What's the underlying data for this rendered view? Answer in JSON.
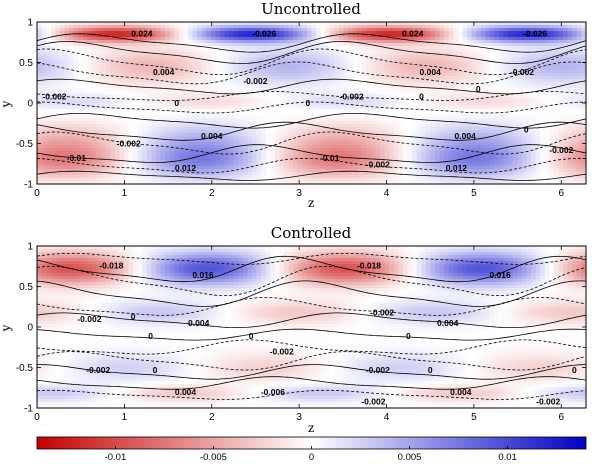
{
  "chart_data": {
    "type": "heatmap",
    "colorbar": {
      "colormap": "red-white-blue",
      "colors": {
        "negative": "#c80000",
        "zero": "#ffffff",
        "positive": "#0000c8"
      },
      "range": [
        -0.014,
        0.014
      ],
      "ticks": [
        -0.01,
        -0.005,
        0,
        0.005,
        0.01
      ],
      "tick_labels": [
        "-0.01",
        "-0.005",
        "0",
        "0.005",
        "0.01"
      ]
    },
    "panels": [
      {
        "title": "Uncontrolled",
        "xlabel": "z",
        "ylabel": "y",
        "xlim": [
          0,
          6.283
        ],
        "ylim": [
          -1,
          1
        ],
        "x_ticks": [
          "0",
          "1",
          "2",
          "3",
          "4",
          "5",
          "6"
        ],
        "y_ticks": [
          "1",
          "0.5",
          "0",
          "-0.5",
          "-1"
        ],
        "contour_labels": [
          {
            "text": "0.024",
            "z": 1.2,
            "y": 0.86
          },
          {
            "text": "-0.026",
            "z": 2.6,
            "y": 0.86
          },
          {
            "text": "0.024",
            "z": 4.3,
            "y": 0.86
          },
          {
            "text": "-0.026",
            "z": 5.7,
            "y": 0.86
          },
          {
            "text": "0.004",
            "z": 1.45,
            "y": 0.38
          },
          {
            "text": "-0.002",
            "z": 2.5,
            "y": 0.27
          },
          {
            "text": "0.004",
            "z": 4.5,
            "y": 0.38
          },
          {
            "text": "-0.002",
            "z": 5.55,
            "y": 0.38
          },
          {
            "text": "0",
            "z": 5.05,
            "y": 0.17
          },
          {
            "text": "-0.002",
            "z": 0.2,
            "y": 0.08
          },
          {
            "text": "0",
            "z": 1.6,
            "y": 0.0
          },
          {
            "text": "0",
            "z": 3.1,
            "y": 0.0
          },
          {
            "text": "-0.002",
            "z": 3.6,
            "y": 0.08
          },
          {
            "text": "0",
            "z": 4.4,
            "y": 0.08
          },
          {
            "text": "0.004",
            "z": 2.0,
            "y": -0.41
          },
          {
            "text": "-0.002",
            "z": 1.05,
            "y": -0.5
          },
          {
            "text": "0.004",
            "z": 4.9,
            "y": -0.41
          },
          {
            "text": "0",
            "z": 5.6,
            "y": -0.33
          },
          {
            "text": "-0.002",
            "z": 6.0,
            "y": -0.58
          },
          {
            "text": "-0.01",
            "z": 0.45,
            "y": -0.68
          },
          {
            "text": "-0.01",
            "z": 3.35,
            "y": -0.68
          },
          {
            "text": "-0.002",
            "z": 3.9,
            "y": -0.76
          },
          {
            "text": "0.012",
            "z": 1.7,
            "y": -0.8
          },
          {
            "text": "0.012",
            "z": 4.8,
            "y": -0.8
          }
        ]
      },
      {
        "title": "Controlled",
        "xlabel": "z",
        "ylabel": "y",
        "xlim": [
          0,
          6.283
        ],
        "ylim": [
          -1,
          1
        ],
        "x_ticks": [
          "0",
          "1",
          "2",
          "3",
          "4",
          "5",
          "6"
        ],
        "y_ticks": [
          "1",
          "0.5",
          "0",
          "-0.5",
          "-1"
        ],
        "contour_labels": [
          {
            "text": "-0.018",
            "z": 0.85,
            "y": 0.76
          },
          {
            "text": "0.016",
            "z": 1.9,
            "y": 0.64
          },
          {
            "text": "-0.018",
            "z": 3.8,
            "y": 0.76
          },
          {
            "text": "0.016",
            "z": 5.3,
            "y": 0.64
          },
          {
            "text": "-0.002",
            "z": 0.6,
            "y": 0.1
          },
          {
            "text": "0",
            "z": 1.1,
            "y": 0.13
          },
          {
            "text": "0.004",
            "z": 1.85,
            "y": 0.05
          },
          {
            "text": "-0.002",
            "z": 3.95,
            "y": 0.18
          },
          {
            "text": "0.004",
            "z": 4.7,
            "y": 0.05
          },
          {
            "text": "0",
            "z": 1.3,
            "y": -0.11
          },
          {
            "text": "0",
            "z": 2.45,
            "y": -0.11
          },
          {
            "text": "-0.002",
            "z": 2.8,
            "y": -0.3
          },
          {
            "text": "0",
            "z": 4.25,
            "y": -0.11
          },
          {
            "text": "-0.002",
            "z": 0.7,
            "y": -0.53
          },
          {
            "text": "0",
            "z": 1.35,
            "y": -0.53
          },
          {
            "text": "-0.002",
            "z": 3.9,
            "y": -0.53
          },
          {
            "text": "0",
            "z": 4.5,
            "y": -0.53
          },
          {
            "text": "0",
            "z": 6.15,
            "y": -0.53
          },
          {
            "text": "0.004",
            "z": 1.7,
            "y": -0.8
          },
          {
            "text": "-0.006",
            "z": 2.7,
            "y": -0.8
          },
          {
            "text": "0.004",
            "z": 4.85,
            "y": -0.8
          },
          {
            "text": "-0.002",
            "z": 3.85,
            "y": -0.92
          },
          {
            "text": "-0.002",
            "z": 5.85,
            "y": -0.92
          }
        ]
      }
    ]
  }
}
